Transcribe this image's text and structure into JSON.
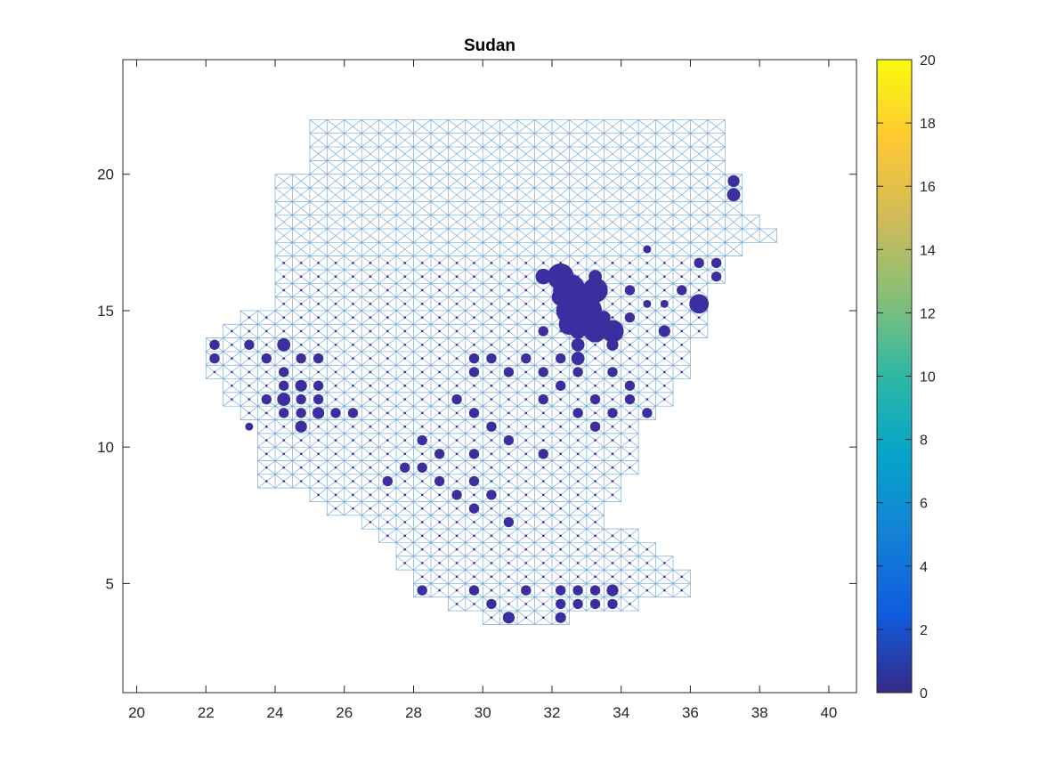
{
  "chart_data": {
    "type": "scatter",
    "title": "Sudan",
    "xlabel": "",
    "ylabel": "",
    "xlim": [
      19.6,
      40.8
    ],
    "ylim": [
      1,
      24.2
    ],
    "xticks": [
      20,
      22,
      24,
      26,
      28,
      30,
      32,
      34,
      36,
      38,
      40
    ],
    "yticks": [
      5,
      10,
      15,
      20
    ],
    "grid": false,
    "network": {
      "description_visible": "light blue mesh of grid edges with diagonals over the country",
      "color": "#4a90c8",
      "cell_size": 0.5,
      "rows": [
        [
          21.75,
          25.25,
          36.75
        ],
        [
          21.25,
          25.25,
          36.75
        ],
        [
          20.75,
          25.25,
          36.75
        ],
        [
          20.25,
          25.25,
          36.75
        ],
        [
          19.75,
          24.25,
          37.25
        ],
        [
          19.25,
          24.25,
          37.25
        ],
        [
          18.75,
          24.25,
          37.25
        ],
        [
          18.25,
          24.25,
          37.75
        ],
        [
          17.75,
          24.25,
          38.25
        ],
        [
          17.25,
          24.25,
          37.25
        ],
        [
          16.75,
          24.25,
          36.75
        ],
        [
          16.25,
          24.25,
          36.75
        ],
        [
          15.75,
          24.25,
          36.25
        ],
        [
          15.25,
          24.25,
          36.25
        ],
        [
          14.75,
          23.25,
          36.25
        ],
        [
          14.25,
          22.75,
          36.25
        ],
        [
          13.75,
          22.25,
          35.75
        ],
        [
          13.25,
          22.25,
          35.75
        ],
        [
          12.75,
          22.25,
          35.75
        ],
        [
          12.25,
          22.75,
          35.25
        ],
        [
          11.75,
          22.75,
          35.25
        ],
        [
          11.25,
          23.25,
          34.75
        ],
        [
          10.75,
          23.75,
          34.25
        ],
        [
          10.25,
          23.75,
          34.25
        ],
        [
          9.75,
          23.75,
          34.25
        ],
        [
          9.25,
          23.75,
          34.25
        ],
        [
          8.75,
          23.75,
          33.75
        ],
        [
          8.25,
          25.25,
          33.75
        ],
        [
          7.75,
          25.75,
          33.25
        ],
        [
          7.25,
          26.75,
          33.25
        ],
        [
          6.75,
          27.25,
          34.25
        ],
        [
          6.25,
          27.75,
          34.75
        ],
        [
          5.75,
          27.75,
          35.25
        ],
        [
          5.25,
          28.25,
          35.75
        ],
        [
          4.75,
          28.25,
          35.75
        ],
        [
          4.25,
          29.25,
          34.25
        ],
        [
          3.75,
          30.25,
          32.25
        ]
      ]
    },
    "series": [
      {
        "marker_color": "#3b2fa0",
        "points": [
          [
            32.75,
            15.25,
            20
          ],
          [
            32.5,
            15.75,
            16
          ],
          [
            33.0,
            15.0,
            14
          ],
          [
            32.75,
            14.75,
            13
          ],
          [
            32.25,
            16.25,
            10
          ],
          [
            32.5,
            15.0,
            10
          ],
          [
            33.25,
            15.75,
            9
          ],
          [
            33.0,
            14.5,
            8
          ],
          [
            33.25,
            14.25,
            7
          ],
          [
            33.75,
            14.25,
            7
          ],
          [
            32.5,
            14.5,
            6
          ],
          [
            36.25,
            15.25,
            5
          ],
          [
            32.25,
            15.5,
            4
          ],
          [
            31.75,
            16.25,
            3
          ],
          [
            32.75,
            14.25,
            3
          ],
          [
            33.5,
            14.75,
            2
          ],
          [
            33.25,
            16.25,
            2
          ],
          [
            32.75,
            13.75,
            2
          ],
          [
            32.75,
            13.25,
            2
          ],
          [
            33.75,
            13.75,
            1.5
          ],
          [
            37.25,
            19.25,
            2
          ],
          [
            37.25,
            19.75,
            1.5
          ],
          [
            35.25,
            14.25,
            1.5
          ],
          [
            24.25,
            13.75,
            2
          ],
          [
            23.25,
            13.75,
            1
          ],
          [
            22.25,
            13.75,
            1
          ],
          [
            22.25,
            13.25,
            1
          ],
          [
            23.75,
            13.25,
            1
          ],
          [
            24.75,
            13.25,
            1
          ],
          [
            25.25,
            13.25,
            1
          ],
          [
            24.25,
            12.75,
            1
          ],
          [
            24.75,
            12.25,
            1.5
          ],
          [
            24.25,
            12.25,
            1
          ],
          [
            25.25,
            12.25,
            1
          ],
          [
            24.25,
            11.75,
            2
          ],
          [
            23.75,
            11.75,
            1
          ],
          [
            24.75,
            11.75,
            1
          ],
          [
            25.25,
            11.75,
            1
          ],
          [
            24.25,
            11.25,
            1
          ],
          [
            24.75,
            11.25,
            1
          ],
          [
            25.25,
            11.25,
            1.5
          ],
          [
            25.75,
            11.25,
            1
          ],
          [
            26.25,
            11.25,
            1
          ],
          [
            24.75,
            10.75,
            1.5
          ],
          [
            23.25,
            10.75,
            0.5
          ],
          [
            34.75,
            17.25,
            0.5
          ],
          [
            36.25,
            16.75,
            1
          ],
          [
            36.75,
            16.75,
            1
          ],
          [
            36.75,
            16.25,
            1
          ],
          [
            34.25,
            15.75,
            1
          ],
          [
            35.75,
            15.75,
            1
          ],
          [
            34.75,
            15.25,
            0.5
          ],
          [
            35.25,
            15.25,
            0.5
          ],
          [
            34.25,
            14.75,
            1
          ],
          [
            34.25,
            12.25,
            1
          ],
          [
            33.75,
            12.75,
            1
          ],
          [
            34.75,
            11.25,
            1
          ],
          [
            32.75,
            12.75,
            1
          ],
          [
            32.25,
            12.25,
            1
          ],
          [
            31.75,
            12.75,
            1
          ],
          [
            31.75,
            14.25,
            1
          ],
          [
            32.25,
            13.25,
            1
          ],
          [
            31.25,
            13.25,
            1
          ],
          [
            30.25,
            13.25,
            1
          ],
          [
            29.75,
            13.25,
            1
          ],
          [
            29.75,
            12.75,
            1
          ],
          [
            30.75,
            12.75,
            1
          ],
          [
            29.25,
            11.75,
            1
          ],
          [
            29.75,
            11.25,
            1
          ],
          [
            28.75,
            9.75,
            1
          ],
          [
            28.25,
            9.25,
            1
          ],
          [
            28.75,
            8.75,
            1
          ],
          [
            29.25,
            8.25,
            1
          ],
          [
            29.75,
            8.75,
            1
          ],
          [
            30.25,
            8.25,
            1
          ],
          [
            27.75,
            9.25,
            1
          ],
          [
            27.25,
            8.75,
            1
          ],
          [
            29.75,
            9.75,
            1
          ],
          [
            31.75,
            9.75,
            1
          ],
          [
            28.25,
            10.25,
            1
          ],
          [
            30.25,
            10.75,
            1
          ],
          [
            30.75,
            10.25,
            1
          ],
          [
            29.75,
            7.75,
            1
          ],
          [
            30.75,
            7.25,
            1
          ],
          [
            33.75,
            4.75,
            1.5
          ],
          [
            33.25,
            4.75,
            1
          ],
          [
            32.75,
            4.75,
            1
          ],
          [
            32.25,
            4.25,
            1
          ],
          [
            32.75,
            4.25,
            1
          ],
          [
            33.25,
            4.25,
            1
          ],
          [
            33.75,
            4.25,
            1
          ],
          [
            30.75,
            3.75,
            1.5
          ],
          [
            32.25,
            3.75,
            1.2
          ],
          [
            30.25,
            4.25,
            1
          ],
          [
            32.25,
            4.75,
            1
          ],
          [
            31.25,
            4.75,
            1
          ],
          [
            29.75,
            4.75,
            1
          ],
          [
            28.25,
            4.75,
            1
          ],
          [
            33.25,
            11.75,
            1
          ],
          [
            34.25,
            11.75,
            1
          ],
          [
            33.75,
            11.25,
            1
          ],
          [
            33.25,
            10.75,
            1
          ],
          [
            32.75,
            11.25,
            1
          ],
          [
            31.75,
            11.75,
            1
          ]
        ]
      }
    ],
    "colorbar": {
      "min": 0,
      "max": 20,
      "ticks": [
        0,
        2,
        4,
        6,
        8,
        10,
        12,
        14,
        16,
        18,
        20
      ],
      "colormap": [
        "#352a87",
        "#0f5cdd",
        "#1481d6",
        "#06a4ca",
        "#2eb7a4",
        "#87bf77",
        "#d1bb59",
        "#fec832",
        "#f9fb0e"
      ]
    }
  }
}
